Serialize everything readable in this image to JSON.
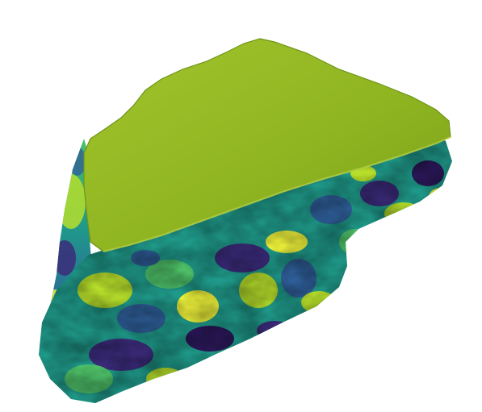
{
  "scene": {
    "subject": "3d-rendered-terrain-wedge",
    "colormap": "viridis",
    "colors": {
      "background": "#ffffff",
      "top_surface": "#8fb521",
      "top_surface_highlight": "#a2c42c",
      "top_surface_shadow": "#6f9418",
      "side_dark": "#3b2b7a",
      "side_deep": "#2a1858",
      "side_blue": "#2f5f9a",
      "side_teal": "#1f9a8a",
      "side_green": "#4fc46a",
      "side_lime": "#b6de2b",
      "side_yellow": "#eef23a"
    }
  }
}
